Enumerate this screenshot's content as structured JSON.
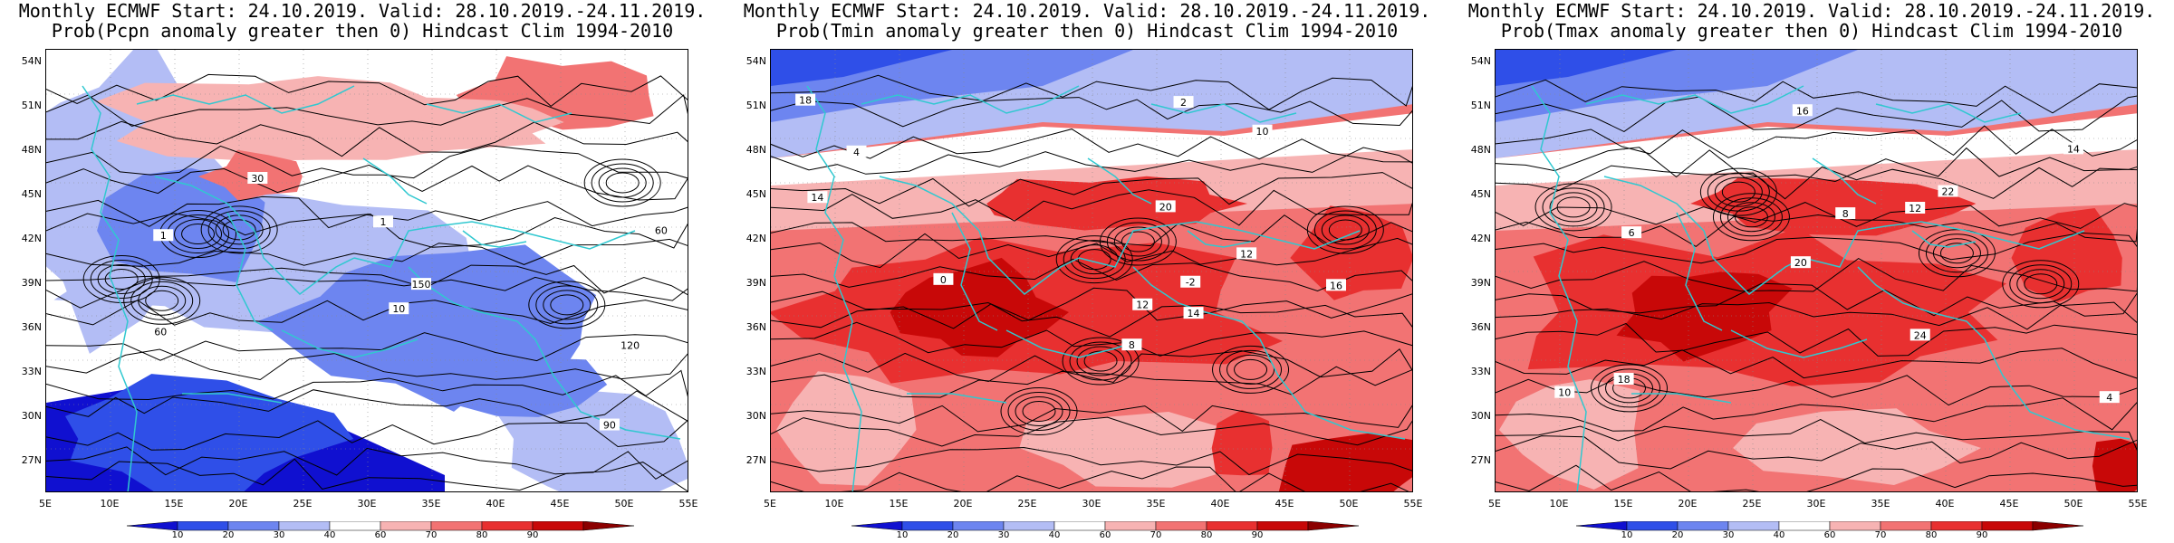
{
  "panels": [
    {
      "title_line1": "Monthly ECMWF Start: 24.10.2019. Valid: 28.10.2019.-24.11.2019.",
      "title_line2": "Prob(Pcpn anomaly greater then 0) Hindcast Clim 1994-2010",
      "variable": "pcpn",
      "contour_labels": [
        "60",
        "30",
        "120",
        "90",
        "150",
        "60",
        "10",
        "1",
        "1"
      ]
    },
    {
      "title_line1": "Monthly ECMWF Start: 24.10.2019. Valid: 28.10.2019.-24.11.2019.",
      "title_line2": "Prob(Tmin anomaly greater then 0) Hindcast Clim 1994-2010",
      "variable": "tmin",
      "contour_labels": [
        "-2",
        "2",
        "0",
        "10",
        "14",
        "12",
        "18",
        "20",
        "16",
        "14",
        "12",
        "8",
        "4"
      ]
    },
    {
      "title_line1": "Monthly ECMWF Start: 24.10.2019. Valid: 28.10.2019.-24.11.2019.",
      "title_line2": "Prob(Tmax anomaly greater then 0) Hindcast Clim 1994-2010",
      "variable": "tmax",
      "contour_labels": [
        "6",
        "4",
        "8",
        "12",
        "16",
        "18",
        "20",
        "22",
        "24",
        "14",
        "10"
      ]
    }
  ],
  "lat_labels": [
    "54N",
    "51N",
    "48N",
    "45N",
    "42N",
    "39N",
    "36N",
    "33N",
    "30N",
    "27N"
  ],
  "lon_labels": [
    "5E",
    "10E",
    "15E",
    "20E",
    "25E",
    "30E",
    "35E",
    "40E",
    "45E",
    "50E",
    "55E"
  ],
  "colorbar": {
    "ticks": [
      "10",
      "20",
      "30",
      "40",
      "60",
      "70",
      "80",
      "90"
    ],
    "colors": [
      "#1010d0",
      "#2f4fe8",
      "#6d85f0",
      "#b3bdf5",
      "#ffffff",
      "#f7b3b3",
      "#f27373",
      "#e83030",
      "#c80808",
      "#8b0000"
    ]
  },
  "colors": {
    "coast": "#30c8d0",
    "contour": "#000000"
  }
}
